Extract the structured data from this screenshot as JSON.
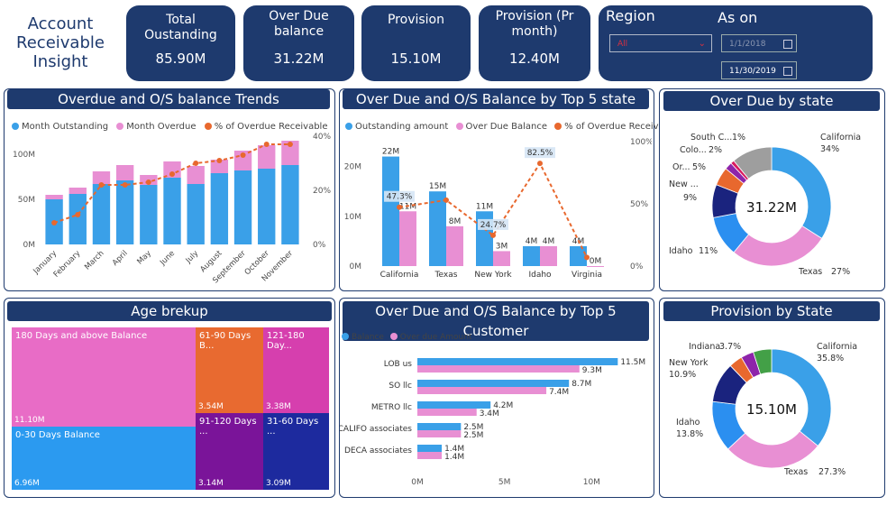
{
  "app_title": "Account Receivable Insight",
  "kpis": [
    {
      "label": "Total Oustanding",
      "value": "85.90M"
    },
    {
      "label": "Over Due balance",
      "value": "31.22M"
    },
    {
      "label": "Provision",
      "value": "15.10M"
    },
    {
      "label": "Provision (Pr month)",
      "value": "12.40M"
    }
  ],
  "filters": {
    "region_label": "Region",
    "region_value": "All",
    "as_on_label": "As on",
    "date_from": "1/1/2018",
    "date_to": "11/30/2019"
  },
  "colors": {
    "navy": "#1e3a6e",
    "blue": "#3aa0e8",
    "pink": "#e88fd3",
    "orange": "#e8682e"
  },
  "panels": {
    "trends": {
      "title": "Overdue and O/S balance Trends",
      "legend": [
        "Month Outstanding",
        "Month Overdue",
        "% of Overdue Receivable"
      ]
    },
    "top5state": {
      "title": "Over Due and O/S Balance by Top 5 state",
      "legend": [
        "Outstanding amount",
        "Over Due Balance",
        "% of Overdue Receivable"
      ]
    },
    "overdue_state": {
      "title": "Over Due by state",
      "center": "31.22M"
    },
    "age": {
      "title": "Age brekup"
    },
    "top5cust": {
      "title": "Over Due and O/S Balance by Top 5 Customer",
      "legend": [
        "Balance",
        "Over due Amount"
      ]
    },
    "provision_state": {
      "title": "Provision by State",
      "center": "15.10M"
    }
  },
  "chart_data": [
    {
      "type": "bar",
      "title": "Overdue and O/S balance Trends",
      "categories": [
        "January",
        "February",
        "March",
        "April",
        "May",
        "June",
        "July",
        "August",
        "September",
        "October",
        "November"
      ],
      "series": [
        {
          "name": "Month Outstanding",
          "values": [
            50,
            56,
            67,
            71,
            66,
            74,
            67,
            79,
            82,
            84,
            88
          ]
        },
        {
          "name": "Month Overdue",
          "values": [
            5,
            7,
            14,
            17,
            11,
            18,
            20,
            15,
            22,
            26,
            27
          ]
        },
        {
          "name": "% of Overdue Receivable",
          "values": [
            8,
            11,
            22,
            22,
            23,
            26,
            30,
            31,
            33,
            37,
            37
          ]
        }
      ],
      "ylim": [
        0,
        120
      ],
      "yticks": [
        "0M",
        "50M",
        "100M"
      ],
      "y2ticks": [
        "0%",
        "20%",
        "40%"
      ],
      "y2lim": [
        0,
        40
      ]
    },
    {
      "type": "bar",
      "title": "Over Due and O/S Balance by Top 5 state",
      "categories": [
        "California",
        "Texas",
        "New York",
        "Idaho",
        "Virginia"
      ],
      "series": [
        {
          "name": "Outstanding amount",
          "values": [
            22,
            15,
            11,
            4,
            4
          ],
          "labels": [
            "22M",
            "15M",
            "11M",
            "4M",
            "4M"
          ]
        },
        {
          "name": "Over Due Balance",
          "values": [
            11,
            8,
            3,
            4,
            0
          ],
          "labels": [
            "11M",
            "8M",
            "3M",
            "4M",
            "0M"
          ]
        },
        {
          "name": "% of Overdue Receivable",
          "values": [
            47.3,
            53,
            24.7,
            82.5,
            7
          ],
          "labels": [
            "47.3%",
            "",
            "24.7%",
            "82.5%",
            ""
          ]
        }
      ],
      "ylim": [
        0,
        25
      ],
      "yticks": [
        "0M",
        "10M",
        "20M"
      ],
      "y2ticks": [
        "0%",
        "50%",
        "100%"
      ],
      "y2lim": [
        0,
        100
      ]
    },
    {
      "type": "pie",
      "title": "Over Due by state",
      "slices": [
        {
          "label": "California",
          "pct": "34%",
          "value": 34,
          "color": "#3aa0e8"
        },
        {
          "label": "Texas",
          "pct": "27%",
          "value": 27,
          "color": "#e88fd3"
        },
        {
          "label": "Idaho",
          "pct": "11%",
          "value": 11,
          "color": "#2b8ff0"
        },
        {
          "label": "New ...",
          "pct": "9%",
          "value": 9,
          "color": "#1a237e"
        },
        {
          "label": "Or...",
          "pct": "5%",
          "value": 5,
          "color": "#e8682e"
        },
        {
          "label": "Colo...",
          "pct": "2%",
          "value": 2,
          "color": "#8e24aa"
        },
        {
          "label": "South C...",
          "pct": "1%",
          "value": 1,
          "color": "#d81b60"
        },
        {
          "label": "",
          "pct": "",
          "value": 11,
          "color": "#9e9e9e"
        }
      ]
    },
    {
      "type": "heatmap",
      "title": "Age brekup",
      "tiles": [
        {
          "label": "180 Days and above Balance",
          "value": "11.10M"
        },
        {
          "label": "0-30 Days Balance",
          "value": "6.96M"
        },
        {
          "label": "61-90 Days B...",
          "value": "3.54M"
        },
        {
          "label": "121-180 Day...",
          "value": "3.38M"
        },
        {
          "label": "91-120 Days ...",
          "value": "3.14M"
        },
        {
          "label": "31-60 Days ...",
          "value": "3.09M"
        }
      ]
    },
    {
      "type": "bar",
      "title": "Over Due and O/S Balance by Top 5 Customer",
      "categories": [
        "LOB us",
        "SO llc",
        "METRO llc",
        "CALIFO associates",
        "DECA associates"
      ],
      "series": [
        {
          "name": "Balance",
          "values": [
            11.5,
            8.7,
            4.2,
            2.5,
            1.4
          ],
          "labels": [
            "11.5M",
            "8.7M",
            "4.2M",
            "2.5M",
            "1.4M"
          ]
        },
        {
          "name": "Over due Amount",
          "values": [
            9.3,
            7.4,
            3.4,
            2.5,
            1.4
          ],
          "labels": [
            "9.3M",
            "7.4M",
            "3.4M",
            "2.5M",
            "1.4M"
          ]
        }
      ],
      "xlim": [
        0,
        12
      ],
      "xticks": [
        "0M",
        "5M",
        "10M"
      ]
    },
    {
      "type": "pie",
      "title": "Provision by State",
      "slices": [
        {
          "label": "California",
          "pct": "35.8%",
          "value": 35.8,
          "color": "#3aa0e8"
        },
        {
          "label": "Texas",
          "pct": "27.3%",
          "value": 27.3,
          "color": "#e88fd3"
        },
        {
          "label": "Idaho",
          "pct": "13.8%",
          "value": 13.8,
          "color": "#2b8ff0"
        },
        {
          "label": "New York",
          "pct": "10.9%",
          "value": 10.9,
          "color": "#1a237e"
        },
        {
          "label": "Indiana",
          "pct": "3.7%",
          "value": 3.7,
          "color": "#e8682e"
        },
        {
          "label": "",
          "pct": "",
          "value": 3.5,
          "color": "#8e24aa"
        },
        {
          "label": "",
          "pct": "",
          "value": 5.0,
          "color": "#43a047"
        }
      ]
    }
  ]
}
